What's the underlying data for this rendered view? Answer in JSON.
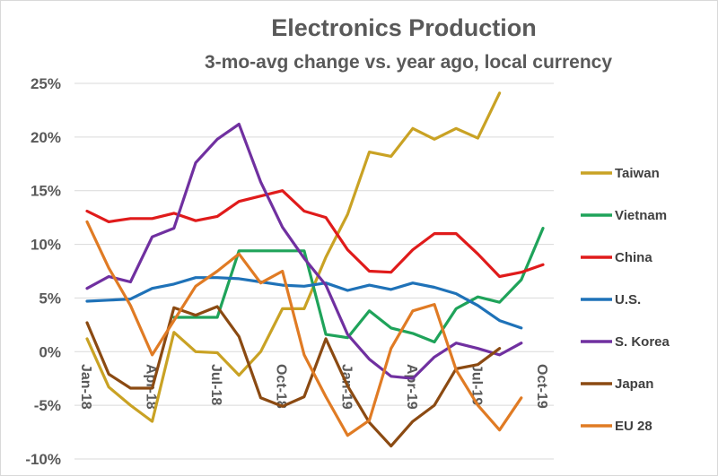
{
  "chart_data": {
    "type": "line",
    "title": "Electronics Production",
    "subtitle": "3-mo-avg change vs. year ago, local currency",
    "xlabel": "",
    "ylabel": "",
    "ylim": [
      -10,
      25
    ],
    "y_ticks": [
      25,
      20,
      15,
      10,
      5,
      0,
      -5,
      -10
    ],
    "y_tick_labels": [
      "25%",
      "20%",
      "15%",
      "10%",
      "5%",
      "0%",
      "-5%",
      "-10%"
    ],
    "grid": true,
    "legend_position": "right",
    "x": [
      "Jan-18",
      "Feb-18",
      "Mar-18",
      "Apr-18",
      "May-18",
      "Jun-18",
      "Jul-18",
      "Aug-18",
      "Sep-18",
      "Oct-18",
      "Nov-18",
      "Dec-18",
      "Jan-19",
      "Feb-19",
      "Mar-19",
      "Apr-19",
      "May-19",
      "Jun-19",
      "Jul-19",
      "Aug-19",
      "Sep-19",
      "Oct-19"
    ],
    "x_tick_labels": [
      {
        "index": 0,
        "label": "Jan-18"
      },
      {
        "index": 3,
        "label": "Apr-18"
      },
      {
        "index": 6,
        "label": "Jul-18"
      },
      {
        "index": 9,
        "label": "Oct-18"
      },
      {
        "index": 12,
        "label": "Jan-19"
      },
      {
        "index": 15,
        "label": "Apr-19"
      },
      {
        "index": 18,
        "label": "Jul-19"
      },
      {
        "index": 21,
        "label": "Oct-19"
      }
    ],
    "series": [
      {
        "name": "Taiwan",
        "color": "#C9A224",
        "values": [
          1.2,
          -3.3,
          -5.0,
          -6.5,
          1.8,
          0.0,
          -0.1,
          -2.2,
          0.0,
          4.0,
          4.0,
          8.8,
          12.8,
          18.6,
          18.2,
          20.8,
          19.8,
          20.8,
          19.9,
          24.1,
          null,
          null
        ]
      },
      {
        "name": "Vietnam",
        "color": "#1FA35A",
        "values": [
          null,
          null,
          null,
          null,
          3.2,
          3.2,
          3.2,
          9.4,
          9.4,
          9.4,
          9.4,
          1.6,
          1.3,
          3.8,
          2.2,
          1.7,
          0.9,
          4.0,
          5.1,
          4.6,
          6.7,
          11.5
        ]
      },
      {
        "name": "China",
        "color": "#E01B1B",
        "values": [
          13.1,
          12.1,
          12.4,
          12.4,
          12.9,
          12.2,
          12.6,
          14.0,
          14.5,
          15.0,
          13.1,
          12.5,
          9.5,
          7.5,
          7.4,
          9.5,
          11.0,
          11.0,
          9.1,
          7.0,
          7.4,
          8.1
        ]
      },
      {
        "name": "U.S.",
        "color": "#1F72B8",
        "values": [
          4.7,
          4.8,
          4.9,
          5.9,
          6.3,
          6.9,
          6.9,
          6.8,
          6.5,
          6.2,
          6.1,
          6.4,
          5.7,
          6.2,
          5.8,
          6.4,
          6.0,
          5.4,
          4.3,
          2.9,
          2.2,
          null
        ]
      },
      {
        "name": "S. Korea",
        "color": "#7030A0",
        "values": [
          5.9,
          7.0,
          6.5,
          10.7,
          11.5,
          17.6,
          19.8,
          21.2,
          15.8,
          11.6,
          8.7,
          6.2,
          1.6,
          -0.7,
          -2.3,
          -2.5,
          -0.5,
          0.8,
          0.3,
          -0.3,
          0.8,
          null
        ]
      },
      {
        "name": "Japan",
        "color": "#8B4A12",
        "values": [
          2.7,
          -2.1,
          -3.4,
          -3.4,
          4.1,
          3.4,
          4.2,
          1.4,
          -4.3,
          -5.1,
          -4.2,
          1.2,
          -3.2,
          -6.6,
          -8.8,
          -6.5,
          -5.0,
          -1.6,
          -1.2,
          0.3,
          null,
          null
        ]
      },
      {
        "name": "EU 28",
        "color": "#E07B24",
        "values": [
          12.1,
          7.8,
          4.3,
          -0.3,
          2.9,
          6.1,
          7.5,
          9.1,
          6.4,
          7.5,
          -0.3,
          -4.2,
          -7.8,
          -6.4,
          0.3,
          3.8,
          4.4,
          -1.7,
          -5.0,
          -7.3,
          -4.3,
          null
        ]
      }
    ]
  }
}
